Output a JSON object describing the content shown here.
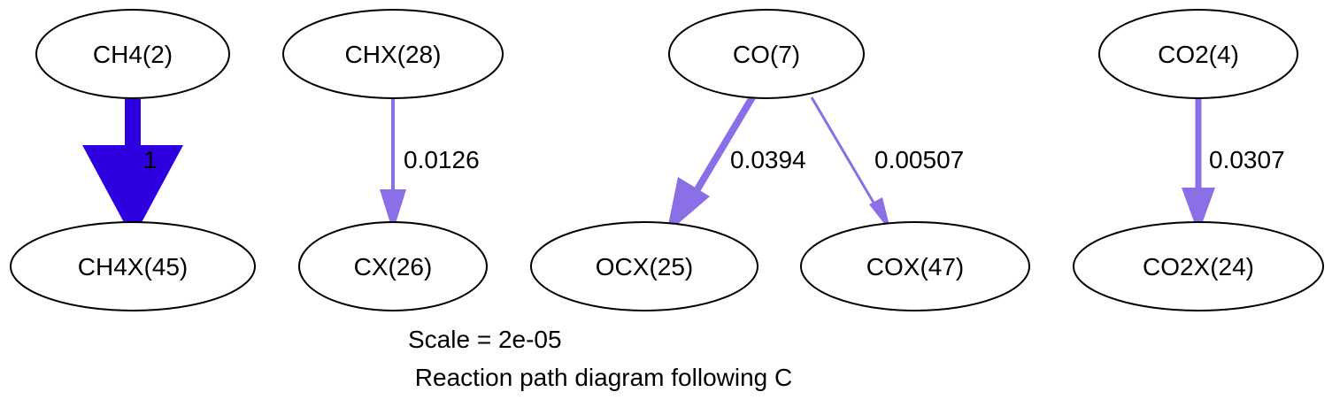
{
  "diagram": {
    "nodes": [
      {
        "id": "ch4",
        "label": "CH4(2)"
      },
      {
        "id": "ch4x",
        "label": "CH4X(45)"
      },
      {
        "id": "chx",
        "label": "CHX(28)"
      },
      {
        "id": "cx",
        "label": "CX(26)"
      },
      {
        "id": "co",
        "label": "CO(7)"
      },
      {
        "id": "ocx",
        "label": "OCX(25)"
      },
      {
        "id": "cox",
        "label": "COX(47)"
      },
      {
        "id": "co2",
        "label": "CO2(4)"
      },
      {
        "id": "co2x",
        "label": "CO2X(24)"
      }
    ],
    "edges": [
      {
        "from": "ch4",
        "to": "ch4x",
        "label": "1",
        "color": "#2e00e0"
      },
      {
        "from": "chx",
        "to": "cx",
        "label": "0.0126",
        "color": "#8a6fe6"
      },
      {
        "from": "co",
        "to": "ocx",
        "label": "0.0394",
        "color": "#8a6fe6"
      },
      {
        "from": "co",
        "to": "cox",
        "label": "0.00507",
        "color": "#8a6fe6"
      },
      {
        "from": "co2",
        "to": "co2x",
        "label": "0.0307",
        "color": "#8a6fe6"
      }
    ],
    "scale": "Scale = 2e-05",
    "title": " Reaction path diagram following C"
  }
}
